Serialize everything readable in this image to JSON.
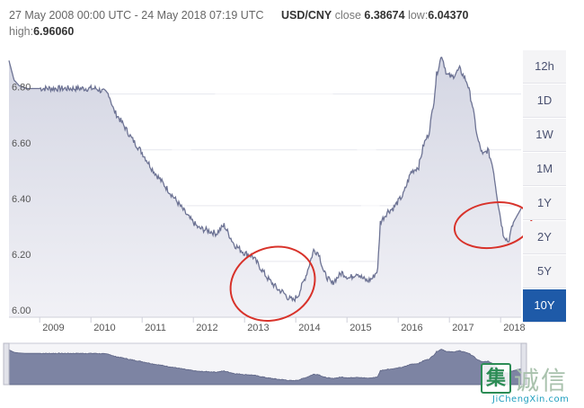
{
  "header": {
    "date_range": "27 May 2008 00:00 UTC - 24 May 2018 07:19 UTC",
    "pair": "USD/CNY",
    "close_label": "close",
    "close_value": "6.38674",
    "low_label": "low:",
    "low_value": "6.04370",
    "high_label": "high:",
    "high_value": "6.96060"
  },
  "range_buttons": [
    {
      "label": "12h",
      "active": false
    },
    {
      "label": "1D",
      "active": false
    },
    {
      "label": "1W",
      "active": false
    },
    {
      "label": "1M",
      "active": false
    },
    {
      "label": "1Y",
      "active": false
    },
    {
      "label": "2Y",
      "active": false
    },
    {
      "label": "5Y",
      "active": false
    },
    {
      "label": "10Y",
      "active": true
    }
  ],
  "watermark": {
    "logo_char": "集",
    "text": "诚信",
    "url": "JiChengXin.com"
  },
  "colors": {
    "line": "#6d7394",
    "area_top": "#d4d6e3",
    "area_bottom": "#f1f1f6",
    "navigator_fill": "#7d84a3",
    "annotation": "#d8322a",
    "active_button": "#1e5aa8"
  },
  "chart_data": {
    "type": "area",
    "xlim": [
      2008.4,
      2018.4
    ],
    "ylim": [
      6.0,
      6.96
    ],
    "yticks": [
      6.0,
      6.2,
      6.4,
      6.6,
      6.8
    ],
    "ytick_labels": [
      "6.00",
      "6.20",
      "6.40",
      "6.60",
      "6.80"
    ],
    "xtick_labels": [
      "2009",
      "2010",
      "2011",
      "2012",
      "2013",
      "2014",
      "2015",
      "2016",
      "2017",
      "2018"
    ],
    "grid": "horizontal",
    "x": [
      2008.4,
      2008.5,
      2008.6,
      2008.75,
      2009.0,
      2009.3,
      2009.6,
      2009.9,
      2010.1,
      2010.35,
      2010.45,
      2010.6,
      2010.8,
      2011.0,
      2011.2,
      2011.45,
      2011.7,
      2011.9,
      2012.1,
      2012.3,
      2012.45,
      2012.6,
      2012.8,
      2013.0,
      2013.15,
      2013.3,
      2013.45,
      2013.55,
      2013.65,
      2013.75,
      2013.85,
      2013.95,
      2014.05,
      2014.2,
      2014.35,
      2014.45,
      2014.55,
      2014.7,
      2014.9,
      2015.05,
      2015.2,
      2015.3,
      2015.4,
      2015.5,
      2015.6,
      2015.65,
      2015.8,
      2015.9,
      2016.1,
      2016.25,
      2016.4,
      2016.5,
      2016.6,
      2016.7,
      2016.75,
      2016.85,
      2016.95,
      2017.05,
      2017.2,
      2017.35,
      2017.45,
      2017.55,
      2017.65,
      2017.75,
      2017.85,
      2017.95,
      2018.05,
      2018.15,
      2018.25,
      2018.4
    ],
    "values": [
      6.92,
      6.85,
      6.83,
      6.82,
      6.82,
      6.82,
      6.82,
      6.82,
      6.82,
      6.8,
      6.74,
      6.7,
      6.64,
      6.59,
      6.53,
      6.47,
      6.41,
      6.36,
      6.32,
      6.31,
      6.3,
      6.33,
      6.26,
      6.23,
      6.22,
      6.18,
      6.14,
      6.12,
      6.1,
      6.09,
      6.07,
      6.06,
      6.08,
      6.15,
      6.24,
      6.23,
      6.16,
      6.12,
      6.16,
      6.14,
      6.16,
      6.14,
      6.13,
      6.14,
      6.17,
      6.34,
      6.38,
      6.39,
      6.44,
      6.52,
      6.54,
      6.62,
      6.66,
      6.78,
      6.87,
      6.94,
      6.87,
      6.86,
      6.89,
      6.84,
      6.76,
      6.64,
      6.58,
      6.6,
      6.54,
      6.41,
      6.3,
      6.27,
      6.34,
      6.39
    ],
    "annotations": [
      {
        "shape": "ellipse",
        "x": 2013.55,
        "y": 6.12
      },
      {
        "shape": "ellipse",
        "x": 2017.85,
        "y": 6.33
      }
    ],
    "range_navigator": true
  }
}
